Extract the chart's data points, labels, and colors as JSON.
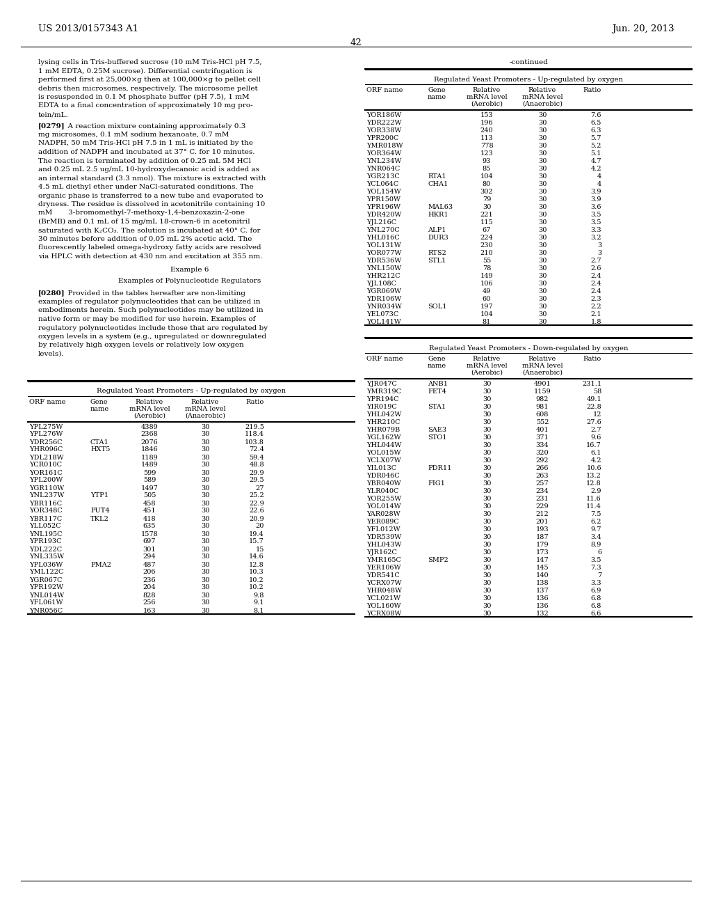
{
  "page_header_left": "US 2013/0157343 A1",
  "page_header_right": "Jun. 20, 2013",
  "page_number": "42",
  "left_text_paragraphs": [
    "lysing cells in Tris-buffered sucrose (10 mM Tris-HCl pH 7.5,\n1 mM EDTA, 0.25M sucrose). Differential centrifugation is\nperformed first at 25,000×g then at 100,000×g to pellet cell\ndebris then microsomes, respectively. The microsome pellet\nis resuspended in 0.1 M phosphate buffer (pH 7.5), 1 mM\nEDTA to a final concentration of approximately 10 mg pro-\ntein/mL.",
    "[0279]   A reaction mixture containing approximately 0.3\nmg microsomes, 0.1 mM sodium hexanoate, 0.7 mM\nNADPH, 50 mM Tris-HCl pH 7.5 in 1 mL is initiated by the\naddition of NADPH and incubated at 37° C. for 10 minutes.\nThe reaction is terminated by addition of 0.25 mL 5M HCl\nand 0.25 mL 2.5 ug/mL 10-hydroxydecanoic acid is added as\nan internal standard (3.3 nmol). The mixture is extracted with\n4.5 mL diethyl ether under NaCl-saturated conditions. The\norganic phase is transferred to a new tube and evaporated to\ndryness. The residue is dissolved in acetonitrile containing 10\nmM       3-bromomethyl-7-methoxy-1,4-benzoxazin-2-one\n(BrMB) and 0.1 mL of 15 mg/mL 18-crown-6 in acetonitril\nsaturated with K₂CO₃. The solution is incubated at 40° C. for\n30 minutes before addition of 0.05 mL 2% acetic acid. The\nfluorescently labeled omega-hydroxy fatty acids are resolved\nvia HPLC with detection at 430 nm and excitation at 355 nm.",
    "Example 6",
    "Examples of Polynucleotide Regulators",
    "[0280]   Provided in the tables hereafter are non-limiting\nexamples of regulator polynucleotides that can be utilized in\nembodiments herein. Such polynucleotides may be utilized in\nnative form or may be modified for use herein. Examples of\nregulatory polynucleotides include those that are regulated by\noxygen levels in a system (e.g., upregulated or downregulated\nby relatively high oxygen levels or relatively low oxygen\nlevels)."
  ],
  "table1_title": "-continued",
  "table1_subtitle": "Regulated Yeast Promoters - Up-regulated by oxygen",
  "table1_headers": [
    "ORF name",
    "Gene\nname",
    "Relative\nmRNA level\n(Aerobic)",
    "Relative\nmRNA level\n(Anaerobic)",
    "Ratio"
  ],
  "table1_data": [
    [
      "YOR186W",
      "",
      "153",
      "30",
      "7.6"
    ],
    [
      "YDR222W",
      "",
      "196",
      "30",
      "6.5"
    ],
    [
      "YOR338W",
      "",
      "240",
      "30",
      "6.3"
    ],
    [
      "YPR200C",
      "",
      "113",
      "30",
      "5.7"
    ],
    [
      "YMR018W",
      "",
      "778",
      "30",
      "5.2"
    ],
    [
      "YOR364W",
      "",
      "123",
      "30",
      "5.1"
    ],
    [
      "YNL234W",
      "",
      "93",
      "30",
      "4.7"
    ],
    [
      "YNR064C",
      "",
      "85",
      "30",
      "4.2"
    ],
    [
      "YGR213C",
      "RTA1",
      "104",
      "30",
      "4"
    ],
    [
      "YCL064C",
      "CHA1",
      "80",
      "30",
      "4"
    ],
    [
      "YOL154W",
      "",
      "302",
      "30",
      "3.9"
    ],
    [
      "YPR150W",
      "",
      "79",
      "30",
      "3.9"
    ],
    [
      "YPR196W",
      "MAL63",
      "30",
      "30",
      "3.6"
    ],
    [
      "YDR420W",
      "HKR1",
      "221",
      "30",
      "3.5"
    ],
    [
      "YJL216C",
      "",
      "115",
      "30",
      "3.5"
    ],
    [
      "YNL270C",
      "ALP1",
      "67",
      "30",
      "3.3"
    ],
    [
      "YHL016C",
      "DUR3",
      "224",
      "30",
      "3.2"
    ],
    [
      "YOL131W",
      "",
      "230",
      "30",
      "3"
    ],
    [
      "YOR077W",
      "RTS2",
      "210",
      "30",
      "3"
    ],
    [
      "YDR536W",
      "STL1",
      "55",
      "30",
      "2.7"
    ],
    [
      "YNL150W",
      "",
      "78",
      "30",
      "2.6"
    ],
    [
      "YHR212C",
      "",
      "149",
      "30",
      "2.4"
    ],
    [
      "YJL108C",
      "",
      "106",
      "30",
      "2.4"
    ],
    [
      "YGR069W",
      "",
      "49",
      "30",
      "2.4"
    ],
    [
      "YDR106W",
      "",
      "60",
      "30",
      "2.3"
    ],
    [
      "YNR034W",
      "SOL1",
      "197",
      "30",
      "2.2"
    ],
    [
      "YEL073C",
      "",
      "104",
      "30",
      "2.1"
    ],
    [
      "YOL141W",
      "",
      "81",
      "30",
      "1.8"
    ]
  ],
  "table2_title": "Regulated Yeast Promoters - Down-regulated by oxygen",
  "table2_headers": [
    "ORF name",
    "Gene\nname",
    "Relative\nmRNA level\n(Aerobic)",
    "Relative\nmRNA level\n(Anaerobic)",
    "Ratio"
  ],
  "table2_data": [
    [
      "YJR047C",
      "ANB1",
      "30",
      "4901",
      "231.1"
    ],
    [
      "YMR319C",
      "FET4",
      "30",
      "1159",
      "58"
    ],
    [
      "YPR194C",
      "",
      "30",
      "982",
      "49.1"
    ],
    [
      "YIR019C",
      "STA1",
      "30",
      "981",
      "22.8"
    ],
    [
      "YHL042W",
      "",
      "30",
      "608",
      "12"
    ],
    [
      "YHR210C",
      "",
      "30",
      "552",
      "27.6"
    ],
    [
      "YHR079B",
      "SAE3",
      "30",
      "401",
      "2.7"
    ],
    [
      "YGL162W",
      "STO1",
      "30",
      "371",
      "9.6"
    ],
    [
      "YHL044W",
      "",
      "30",
      "334",
      "16.7"
    ],
    [
      "YOL015W",
      "",
      "30",
      "320",
      "6.1"
    ],
    [
      "YCLX07W",
      "",
      "30",
      "292",
      "4.2"
    ],
    [
      "YIL013C",
      "PDR11",
      "30",
      "266",
      "10.6"
    ],
    [
      "YDR046C",
      "",
      "30",
      "263",
      "13.2"
    ],
    [
      "YBR040W",
      "FIG1",
      "30",
      "257",
      "12.8"
    ],
    [
      "YLR040C",
      "",
      "30",
      "234",
      "2.9"
    ],
    [
      "YOR255W",
      "",
      "30",
      "231",
      "11.6"
    ],
    [
      "YOL014W",
      "",
      "30",
      "229",
      "11.4"
    ],
    [
      "YAR028W",
      "",
      "30",
      "212",
      "7.5"
    ],
    [
      "YER089C",
      "",
      "30",
      "201",
      "6.2"
    ],
    [
      "YFL012W",
      "",
      "30",
      "193",
      "9.7"
    ],
    [
      "YDR539W",
      "",
      "30",
      "187",
      "3.4"
    ],
    [
      "YHL043W",
      "",
      "30",
      "179",
      "8.9"
    ],
    [
      "YJR162C",
      "",
      "30",
      "173",
      "6"
    ],
    [
      "YMR165C",
      "SMP2",
      "30",
      "147",
      "3.5"
    ],
    [
      "YER106W",
      "",
      "30",
      "145",
      "7.3"
    ],
    [
      "YDR541C",
      "",
      "30",
      "140",
      "7"
    ],
    [
      "YCRX07W",
      "",
      "30",
      "138",
      "3.3"
    ],
    [
      "YHR048W",
      "",
      "30",
      "137",
      "6.9"
    ],
    [
      "YCL021W",
      "",
      "30",
      "136",
      "6.8"
    ],
    [
      "YOL160W",
      "",
      "30",
      "136",
      "6.8"
    ],
    [
      "YCRX08W",
      "",
      "30",
      "132",
      "6.6"
    ]
  ],
  "table3_title": "Regulated Yeast Promoters - Up-regulated by oxygen",
  "table3_headers": [
    "ORF name",
    "Gene\nname",
    "Relative\nmRNA level\n(Aerobic)",
    "Relative\nmRNA level\n(Anaerobic)",
    "Ratio"
  ],
  "table3_data": [
    [
      "YPL275W",
      "",
      "4389",
      "30",
      "219.5"
    ],
    [
      "YPL276W",
      "",
      "2368",
      "30",
      "118.4"
    ],
    [
      "YDR256C",
      "CTA1",
      "2076",
      "30",
      "103.8"
    ],
    [
      "YHR096C",
      "HXT5",
      "1846",
      "30",
      "72.4"
    ],
    [
      "YDL218W",
      "",
      "1189",
      "30",
      "59.4"
    ],
    [
      "YCR010C",
      "",
      "1489",
      "30",
      "48.8"
    ],
    [
      "YOR161C",
      "",
      "599",
      "30",
      "29.9"
    ],
    [
      "YPL200W",
      "",
      "589",
      "30",
      "29.5"
    ],
    [
      "YGR110W",
      "",
      "1497",
      "30",
      "27"
    ],
    [
      "YNL237W",
      "YTP1",
      "505",
      "30",
      "25.2"
    ],
    [
      "YBR116C",
      "",
      "458",
      "30",
      "22.9"
    ],
    [
      "YOR348C",
      "PUT4",
      "451",
      "30",
      "22.6"
    ],
    [
      "YBR117C",
      "TKL2",
      "418",
      "30",
      "20.9"
    ],
    [
      "YLL052C",
      "",
      "635",
      "30",
      "20"
    ],
    [
      "YNL195C",
      "",
      "1578",
      "30",
      "19.4"
    ],
    [
      "YPR193C",
      "",
      "697",
      "30",
      "15.7"
    ],
    [
      "YDL222C",
      "",
      "301",
      "30",
      "15"
    ],
    [
      "YNL335W",
      "",
      "294",
      "30",
      "14.6"
    ],
    [
      "YPL036W",
      "PMA2",
      "487",
      "30",
      "12.8"
    ],
    [
      "YML122C",
      "",
      "206",
      "30",
      "10.3"
    ],
    [
      "YGR067C",
      "",
      "236",
      "30",
      "10.2"
    ],
    [
      "YPR192W",
      "",
      "204",
      "30",
      "10.2"
    ],
    [
      "YNL014W",
      "",
      "828",
      "30",
      "9.8"
    ],
    [
      "YFL061W",
      "",
      "256",
      "30",
      "9.1"
    ],
    [
      "YNR056C",
      "",
      "163",
      "30",
      "8.1"
    ]
  ],
  "bg_color": "#ffffff",
  "text_color": "#000000",
  "font_size_body": 7.5,
  "font_size_header": 8.5,
  "font_size_table": 7.0
}
